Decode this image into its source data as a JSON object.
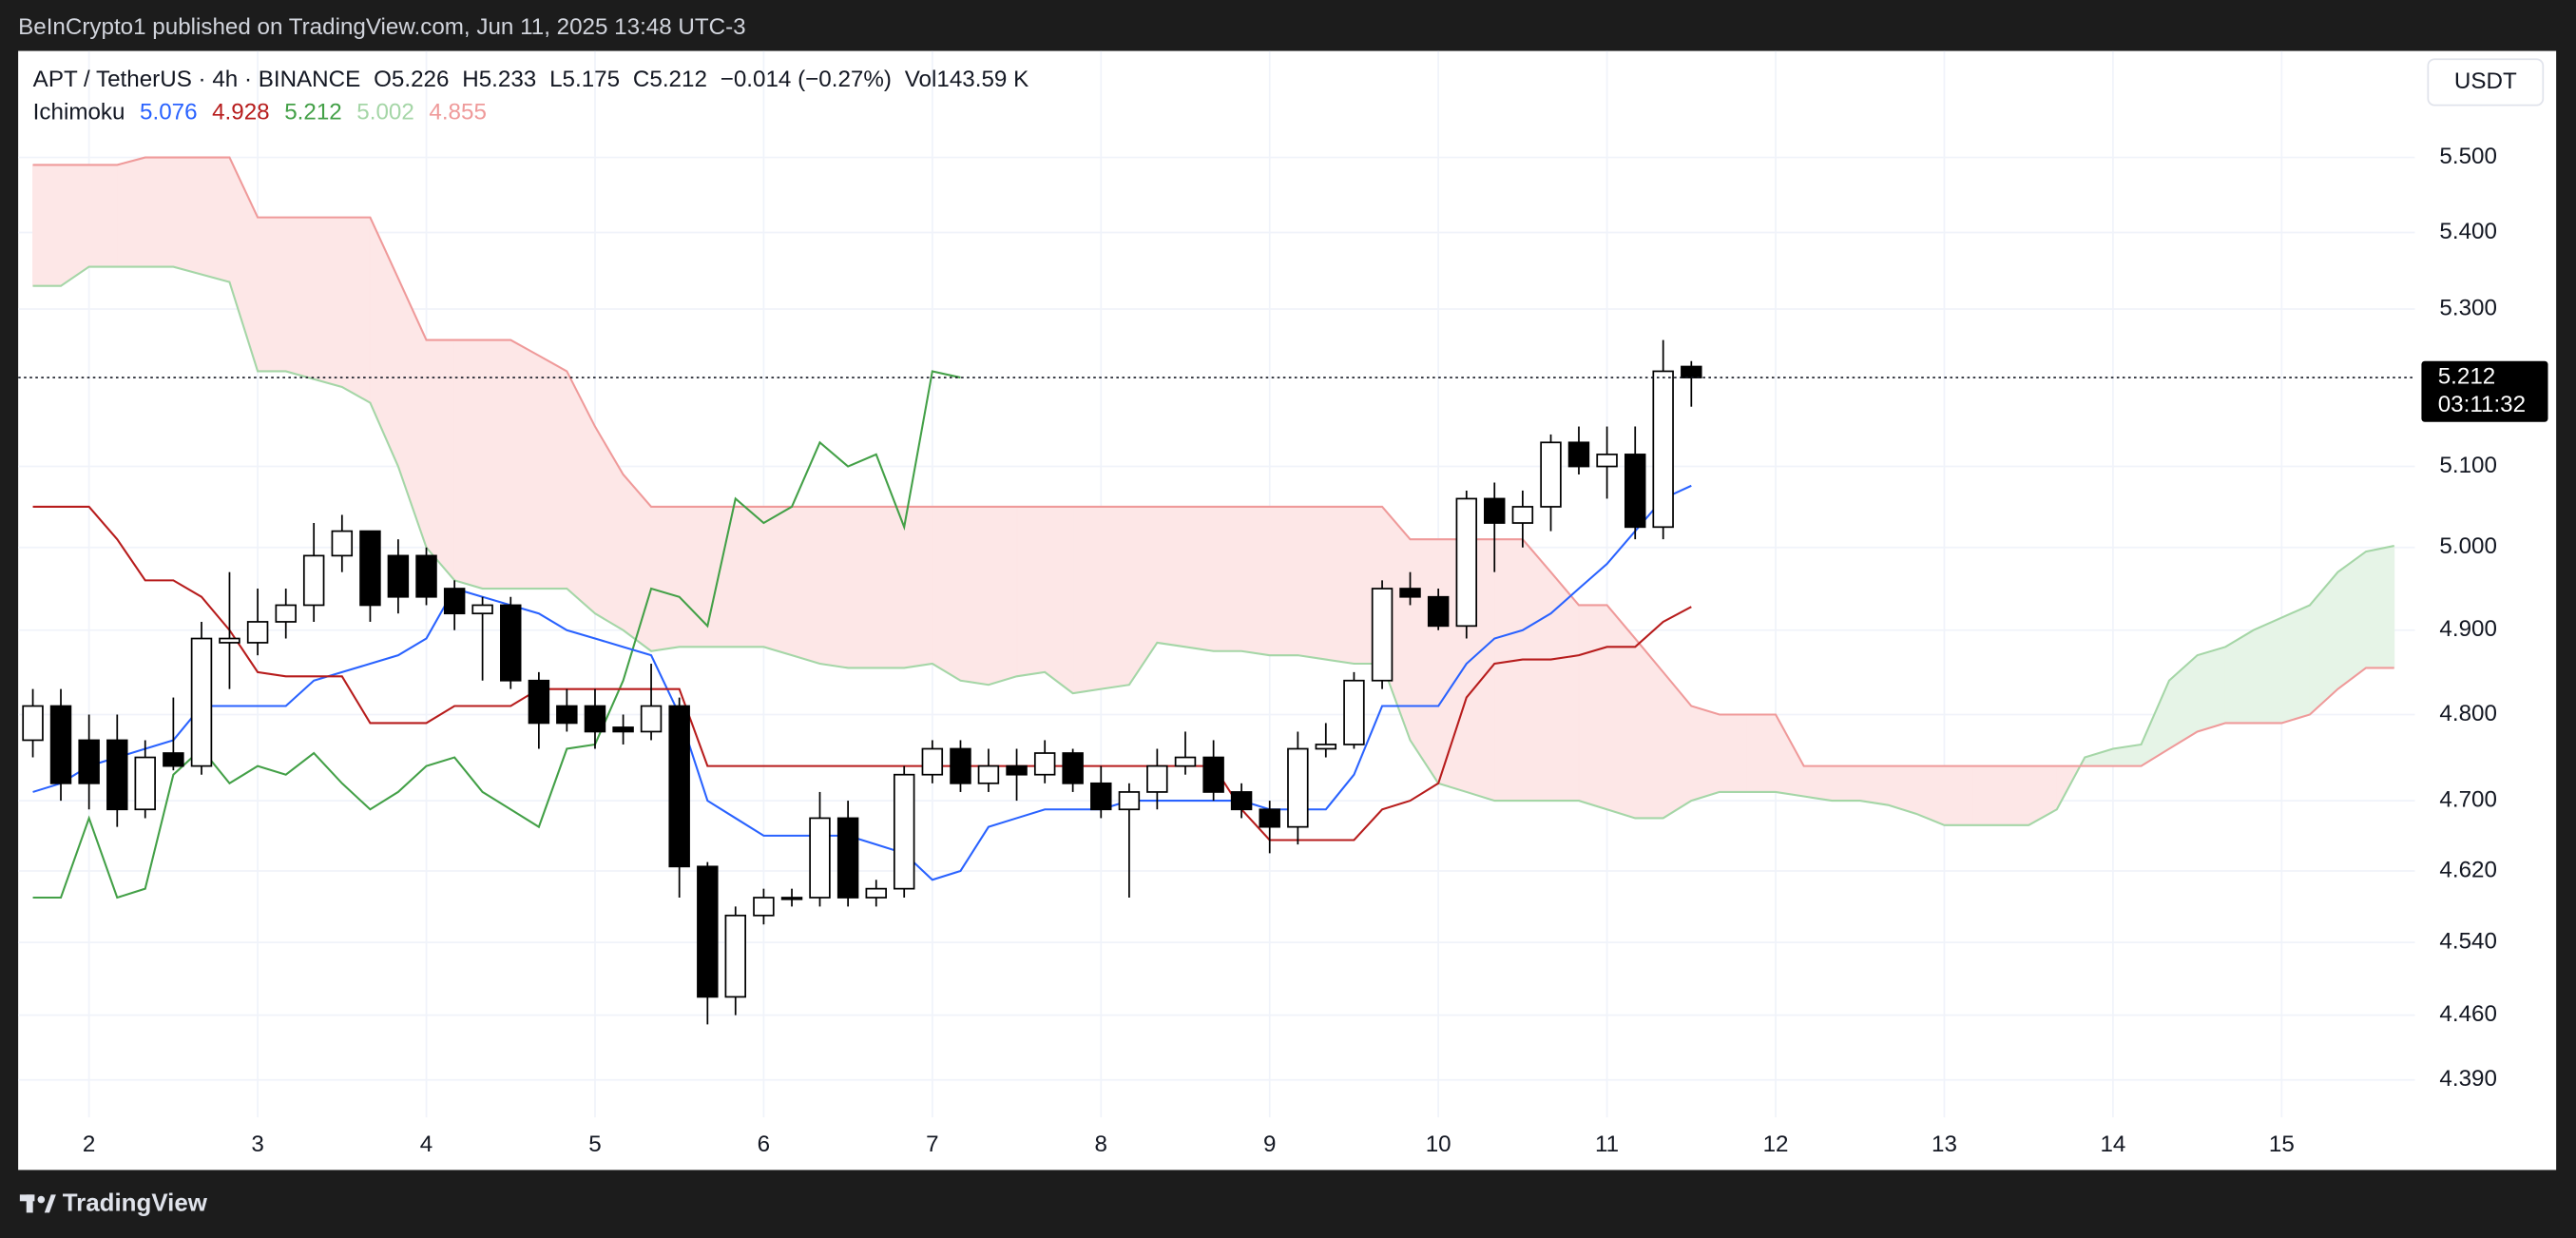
{
  "chart_data": {
    "type": "candlestick",
    "header": "BeInCrypto1 published on TradingView.com, Jun 11, 2025 13:48 UTC-3",
    "symbol": "APT / TetherUS · 4h · BINANCE",
    "ohlc_labels": [
      "O",
      "H",
      "L",
      "C"
    ],
    "change": "−0.014 (−0.27%)",
    "volume": {
      "label": "Vol",
      "value": "143.59 K"
    },
    "currency": "USDT",
    "countdown": "03:11:32",
    "footer": "TradingView",
    "up_color": "#ffffff",
    "down_color": "#000000",
    "wick_color": "#000000",
    "x": [
      1.667,
      1.833,
      2,
      2.167,
      2.333,
      2.5,
      2.667,
      2.833,
      3,
      3.167,
      3.333,
      3.5,
      3.667,
      3.833,
      4,
      4.167,
      4.333,
      4.5,
      4.667,
      4.833,
      5,
      5.167,
      5.333,
      5.5,
      5.667,
      5.833,
      6,
      6.167,
      6.333,
      6.5,
      6.667,
      6.833,
      7,
      7.167,
      7.333,
      7.5,
      7.667,
      7.833,
      8,
      8.167,
      8.333,
      8.5,
      8.667,
      8.833,
      9,
      9.167,
      9.333,
      9.5,
      9.667,
      9.833,
      10,
      10.167,
      10.333,
      10.5,
      10.667,
      10.833,
      11,
      11.167,
      11.333,
      11.5,
      11.667,
      11.833,
      12,
      12.167,
      12.333,
      12.5,
      12.667,
      12.833,
      13,
      13.167,
      13.333,
      13.5,
      13.667,
      13.833,
      14,
      14.167,
      14.333,
      14.5,
      14.667,
      14.833,
      15,
      15.167,
      15.333,
      15.5,
      15.667
    ],
    "open": [
      4.77,
      4.81,
      4.77,
      4.77,
      4.69,
      4.755,
      4.74,
      4.885,
      4.885,
      4.91,
      4.93,
      4.99,
      5.02,
      4.99,
      4.99,
      4.95,
      4.92,
      4.93,
      4.84,
      4.81,
      4.81,
      4.785,
      4.78,
      4.81,
      4.625,
      4.48,
      4.57,
      4.59,
      4.59,
      4.68,
      4.59,
      4.6,
      4.73,
      4.76,
      4.72,
      4.74,
      4.73,
      4.755,
      4.72,
      4.69,
      4.71,
      4.74,
      4.75,
      4.71,
      4.69,
      4.67,
      4.76,
      4.765,
      4.84,
      4.95,
      4.94,
      4.905,
      5.06,
      5.03,
      5.05,
      5.13,
      5.1,
      5.115,
      5.025,
      5.226,
      null,
      null,
      null,
      null,
      null,
      null,
      null,
      null,
      null,
      null,
      null,
      null,
      null,
      null,
      null,
      null,
      null,
      null,
      null,
      null,
      null,
      null,
      null,
      null,
      null
    ],
    "high": [
      4.83,
      4.83,
      4.8,
      4.8,
      4.77,
      4.82,
      4.91,
      4.97,
      4.95,
      4.95,
      5.03,
      5.04,
      5.02,
      5.01,
      5,
      4.96,
      4.94,
      4.94,
      4.85,
      4.83,
      4.83,
      4.8,
      4.86,
      4.82,
      4.63,
      4.58,
      4.6,
      4.6,
      4.71,
      4.7,
      4.61,
      4.74,
      4.77,
      4.77,
      4.76,
      4.76,
      4.77,
      4.76,
      4.74,
      4.72,
      4.76,
      4.78,
      4.77,
      4.72,
      4.7,
      4.78,
      4.79,
      4.85,
      4.96,
      4.97,
      4.95,
      5.07,
      5.08,
      5.07,
      5.14,
      5.15,
      5.15,
      5.15,
      5.26,
      5.233,
      null,
      null,
      null,
      null,
      null,
      null,
      null,
      null,
      null,
      null,
      null,
      null,
      null,
      null,
      null,
      null,
      null,
      null,
      null,
      null,
      null,
      null,
      null,
      null,
      null
    ],
    "low": [
      4.75,
      4.7,
      4.69,
      4.67,
      4.68,
      4.735,
      4.73,
      4.83,
      4.87,
      4.89,
      4.91,
      4.97,
      4.91,
      4.92,
      4.93,
      4.9,
      4.84,
      4.83,
      4.76,
      4.78,
      4.76,
      4.765,
      4.77,
      4.59,
      4.45,
      4.46,
      4.56,
      4.58,
      4.58,
      4.58,
      4.58,
      4.59,
      4.72,
      4.71,
      4.71,
      4.7,
      4.72,
      4.71,
      4.68,
      4.59,
      4.69,
      4.73,
      4.7,
      4.68,
      4.64,
      4.65,
      4.75,
      4.76,
      4.83,
      4.93,
      4.9,
      4.89,
      4.97,
      5,
      5.02,
      5.09,
      5.06,
      5.01,
      5.01,
      5.175,
      null,
      null,
      null,
      null,
      null,
      null,
      null,
      null,
      null,
      null,
      null,
      null,
      null,
      null,
      null,
      null,
      null,
      null,
      null,
      null,
      null,
      null,
      null,
      null,
      null
    ],
    "close": [
      4.81,
      4.72,
      4.72,
      4.69,
      4.75,
      4.74,
      4.89,
      4.89,
      4.91,
      4.93,
      4.99,
      5.02,
      4.93,
      4.94,
      4.94,
      4.92,
      4.93,
      4.84,
      4.79,
      4.79,
      4.78,
      4.78,
      4.81,
      4.625,
      4.48,
      4.57,
      4.59,
      4.59,
      4.68,
      4.59,
      4.6,
      4.73,
      4.76,
      4.72,
      4.74,
      4.73,
      4.755,
      4.72,
      4.69,
      4.71,
      4.74,
      4.75,
      4.71,
      4.69,
      4.67,
      4.76,
      4.765,
      4.84,
      4.95,
      4.94,
      4.905,
      5.06,
      5.03,
      5.05,
      5.13,
      5.1,
      5.115,
      5.025,
      5.22,
      5.212,
      null,
      null,
      null,
      null,
      null,
      null,
      null,
      null,
      null,
      null,
      null,
      null,
      null,
      null,
      null,
      null,
      null,
      null,
      null,
      null,
      null,
      null,
      null,
      null,
      null
    ],
    "indicator": {
      "name": "Ichimoku",
      "cloud_colors": {
        "bullish": "#e6f4e7",
        "bearish": "#fde7e7"
      },
      "series": [
        {
          "color": "#2962ff",
          "values": [
            4.71,
            4.72,
            4.74,
            4.75,
            4.76,
            4.77,
            4.81,
            4.81,
            4.81,
            4.81,
            4.84,
            4.85,
            4.86,
            4.87,
            4.89,
            4.95,
            4.94,
            4.93,
            4.92,
            4.9,
            4.89,
            4.88,
            4.87,
            4.8,
            4.7,
            4.68,
            4.66,
            4.66,
            4.66,
            4.66,
            4.65,
            4.64,
            4.61,
            4.62,
            4.67,
            4.68,
            4.69,
            4.69,
            4.69,
            4.7,
            4.7,
            4.7,
            4.7,
            4.7,
            4.69,
            4.69,
            4.69,
            4.73,
            4.81,
            4.81,
            4.81,
            4.86,
            4.89,
            4.9,
            4.92,
            4.95,
            4.98,
            5.02,
            5.06,
            5.076,
            null,
            null,
            null,
            null,
            null,
            null,
            null,
            null,
            null,
            null,
            null,
            null,
            null,
            null,
            null,
            null,
            null,
            null,
            null,
            null,
            null,
            null,
            null,
            null,
            null
          ]
        },
        {
          "color": "#b71c1c",
          "values": [
            5.05,
            5.05,
            5.05,
            5.01,
            4.96,
            4.96,
            4.94,
            4.9,
            4.85,
            4.845,
            4.845,
            4.845,
            4.79,
            4.79,
            4.79,
            4.81,
            4.81,
            4.81,
            4.83,
            4.83,
            4.83,
            4.83,
            4.83,
            4.83,
            4.74,
            4.74,
            4.74,
            4.74,
            4.74,
            4.74,
            4.74,
            4.74,
            4.74,
            4.74,
            4.74,
            4.74,
            4.74,
            4.74,
            4.74,
            4.74,
            4.74,
            4.74,
            4.74,
            4.69,
            4.655,
            4.655,
            4.655,
            4.655,
            4.69,
            4.7,
            4.72,
            4.82,
            4.86,
            4.865,
            4.865,
            4.87,
            4.88,
            4.88,
            4.91,
            4.928,
            null,
            null,
            null,
            null,
            null,
            null,
            null,
            null,
            null,
            null,
            null,
            null,
            null,
            null,
            null,
            null,
            null,
            null,
            null,
            null,
            null,
            null,
            null,
            null,
            null
          ]
        },
        {
          "color": "#43a047",
          "values": [
            4.59,
            4.59,
            4.68,
            4.59,
            4.6,
            4.73,
            4.76,
            4.72,
            4.74,
            4.73,
            4.755,
            4.72,
            4.69,
            4.71,
            4.74,
            4.75,
            4.71,
            4.69,
            4.67,
            4.76,
            4.765,
            4.84,
            4.95,
            4.94,
            4.905,
            5.06,
            5.03,
            5.05,
            5.13,
            5.1,
            5.115,
            5.025,
            5.22,
            5.212,
            null,
            null,
            null,
            null,
            null,
            null,
            null,
            null,
            null,
            null,
            null,
            null,
            null,
            null,
            null,
            null,
            null,
            null,
            null,
            null,
            null,
            null,
            null,
            null,
            null,
            null,
            null,
            null,
            null,
            null,
            null,
            null,
            null,
            null,
            null,
            null,
            null,
            null,
            null,
            null,
            null,
            null,
            null,
            null,
            null,
            null,
            null,
            null,
            null,
            null,
            null
          ]
        },
        {
          "color": "#a5d6a7",
          "values": [
            5.33,
            5.33,
            5.355,
            5.355,
            5.355,
            5.355,
            5.345,
            5.335,
            5.22,
            5.22,
            5.21,
            5.2,
            5.18,
            5.1,
            5,
            4.96,
            4.95,
            4.95,
            4.95,
            4.95,
            4.92,
            4.9,
            4.875,
            4.88,
            4.88,
            4.88,
            4.88,
            4.87,
            4.86,
            4.855,
            4.855,
            4.855,
            4.86,
            4.84,
            4.835,
            4.845,
            4.85,
            4.825,
            4.83,
            4.835,
            4.885,
            4.88,
            4.875,
            4.875,
            4.87,
            4.87,
            4.865,
            4.86,
            4.86,
            4.77,
            4.72,
            4.71,
            4.7,
            4.7,
            4.7,
            4.7,
            4.69,
            4.68,
            4.68,
            4.7,
            4.71,
            4.71,
            4.71,
            4.705,
            4.7,
            4.7,
            4.695,
            4.685,
            4.672,
            4.672,
            4.672,
            4.672,
            4.69,
            4.75,
            4.76,
            4.765,
            4.84,
            4.87,
            4.88,
            4.9,
            4.915,
            4.93,
            4.97,
            4.995,
            5.002
          ]
        },
        {
          "color": "#ef9a9a",
          "values": [
            5.49,
            5.49,
            5.49,
            5.49,
            5.5,
            5.5,
            5.5,
            5.5,
            5.42,
            5.42,
            5.42,
            5.42,
            5.42,
            5.34,
            5.26,
            5.26,
            5.26,
            5.26,
            5.24,
            5.22,
            5.15,
            5.09,
            5.05,
            5.05,
            5.05,
            5.05,
            5.05,
            5.05,
            5.05,
            5.05,
            5.05,
            5.05,
            5.05,
            5.05,
            5.05,
            5.05,
            5.05,
            5.05,
            5.05,
            5.05,
            5.05,
            5.05,
            5.05,
            5.05,
            5.05,
            5.05,
            5.05,
            5.05,
            5.05,
            5.01,
            5.01,
            5.01,
            5.01,
            5.01,
            4.97,
            4.93,
            4.93,
            4.89,
            4.85,
            4.81,
            4.8,
            4.8,
            4.8,
            4.74,
            4.74,
            4.74,
            4.74,
            4.74,
            4.74,
            4.74,
            4.74,
            4.74,
            4.74,
            4.74,
            4.74,
            4.74,
            4.76,
            4.78,
            4.79,
            4.79,
            4.79,
            4.8,
            4.83,
            4.855,
            4.855
          ]
        }
      ]
    },
    "xlim": [
      1.58,
      15.79
    ],
    "xticks": [
      2,
      3,
      4,
      5,
      6,
      7,
      8,
      9,
      10,
      11,
      12,
      13,
      14,
      15
    ],
    "ylim": [
      4.35,
      5.645
    ],
    "yticks": [
      {
        "value": 5.5,
        "label": "5.500"
      },
      {
        "value": 5.4,
        "label": "5.400"
      },
      {
        "value": 5.3,
        "label": "5.300"
      },
      {
        "value": 5.1,
        "label": "5.100"
      },
      {
        "value": 5,
        "label": "5.000"
      },
      {
        "value": 4.9,
        "label": "4.900"
      },
      {
        "value": 4.8,
        "label": "4.800"
      },
      {
        "value": 4.7,
        "label": "4.700"
      },
      {
        "value": 4.62,
        "label": "4.620"
      },
      {
        "value": 4.54,
        "label": "4.540"
      },
      {
        "value": 4.46,
        "label": "4.460"
      },
      {
        "value": 4.39,
        "label": "4.390"
      }
    ],
    "log": true,
    "grid": true
  }
}
